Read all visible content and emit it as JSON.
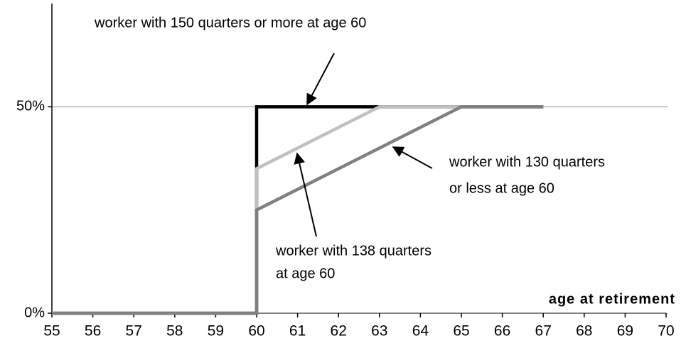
{
  "chart_data": {
    "type": "line",
    "x_label": "age at retirement",
    "x": [
      55,
      60,
      60,
      63,
      65,
      67
    ],
    "series": [
      {
        "color": "#000000",
        "x": [
          55,
          60,
          60,
          67
        ],
        "values": [
          0,
          0,
          50,
          50
        ]
      },
      {
        "color": "#c0c0c0",
        "x": [
          55,
          60,
          60,
          63,
          67
        ],
        "values": [
          0,
          0,
          35,
          50,
          50
        ]
      },
      {
        "color": "#808080",
        "x": [
          55,
          60,
          60,
          65,
          67
        ],
        "values": [
          0,
          0,
          25,
          50,
          50
        ]
      }
    ],
    "xlim": [
      55,
      70
    ],
    "xticks": [
      55,
      56,
      57,
      58,
      59,
      60,
      61,
      62,
      63,
      64,
      65,
      66,
      67,
      68,
      69,
      70
    ],
    "ylim": [
      0,
      75
    ],
    "yticks": [
      {
        "value": 0,
        "label": "0%"
      },
      {
        "value": 50,
        "label": "50%"
      }
    ],
    "grid": true,
    "annotations": [
      [
        "worker with 150 quarters or more at age 60"
      ],
      [
        "worker with 130 quarters",
        "or less at age 60"
      ],
      [
        "worker with 138 quarters",
        "at age 60"
      ]
    ]
  }
}
